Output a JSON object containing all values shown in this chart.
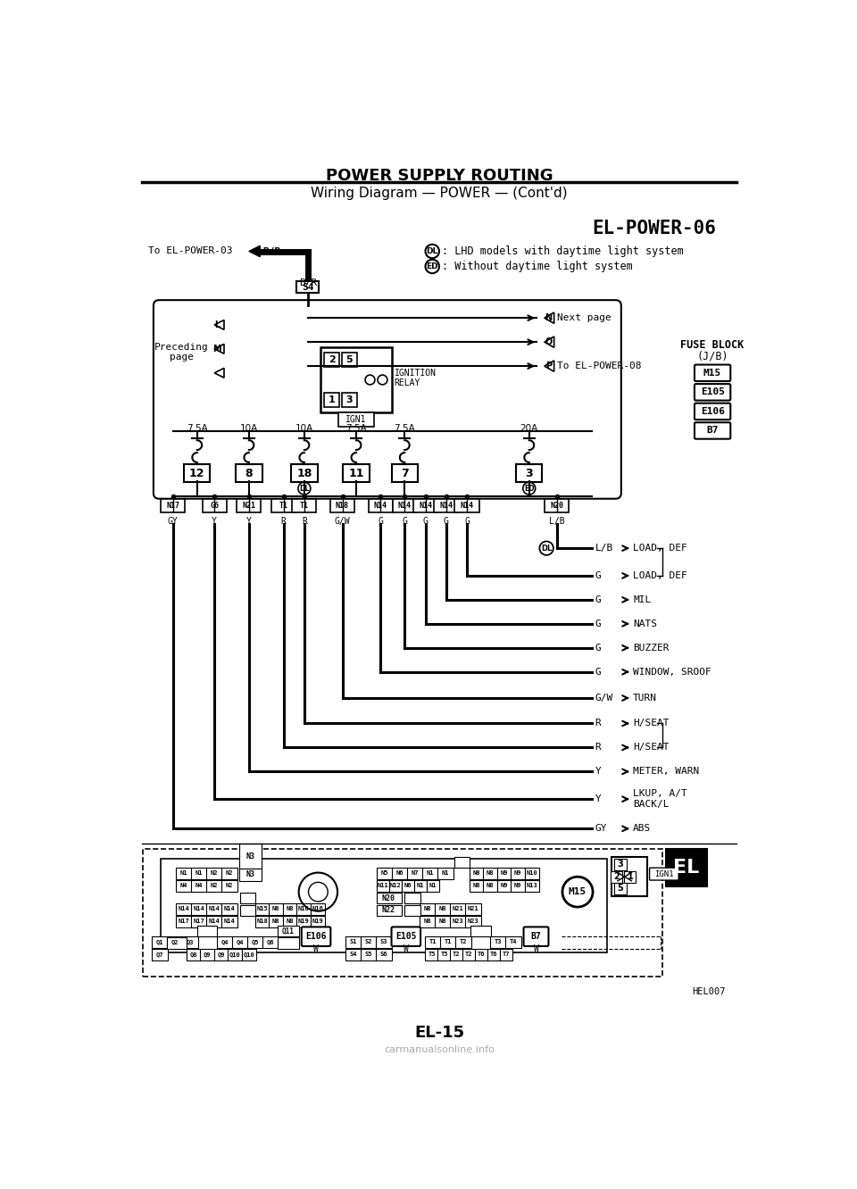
{
  "title": "POWER SUPPLY ROUTING",
  "subtitle": "Wiring Diagram — POWER — (Cont'd)",
  "page_id": "EL-POWER-06",
  "page_num": "EL-15",
  "ref_code": "HEL007",
  "bg_color": "#ffffff",
  "legend_dl": "LHD models with daytime light system",
  "legend_ed": "Without daytime light system",
  "fuse_block_label1": "FUSE BLOCK",
  "fuse_block_label2": "(J/B)",
  "fuse_block_items": [
    "M15",
    "E105",
    "E106",
    "B7"
  ],
  "fuses": [
    {
      "amps": "7.5A",
      "num": "12",
      "col": 0
    },
    {
      "amps": "10A",
      "num": "8",
      "col": 1
    },
    {
      "amps": "10A",
      "num": "18",
      "col": 2
    },
    {
      "amps": "7.5A",
      "num": "11",
      "col": 3
    },
    {
      "amps": "7.5A",
      "num": "7",
      "col": 4
    },
    {
      "amps": "20A",
      "num": "3",
      "col": 5
    }
  ],
  "fuse_dl_idx": 2,
  "fuse_ed_idx": 5,
  "connectors_top": [
    "N17",
    "G6",
    "N21",
    "T1",
    "T1",
    "N18",
    "N14",
    "N14",
    "N14",
    "N14",
    "N14",
    "N20"
  ],
  "wire_colors": [
    "GY",
    "Y",
    "Y",
    "R",
    "R",
    "G/W",
    "G",
    "G",
    "G",
    "G",
    "G",
    "L/B"
  ],
  "outputs": [
    {
      "wire": "L/B",
      "dest": "LOAD, DEF",
      "brace_top": true
    },
    {
      "wire": "G",
      "dest": "LOAD, DEF",
      "brace_bot": true
    },
    {
      "wire": "G",
      "dest": "MIL"
    },
    {
      "wire": "G",
      "dest": "NATS"
    },
    {
      "wire": "G",
      "dest": "BUZZER"
    },
    {
      "wire": "G",
      "dest": "WINDOW, SROOF"
    },
    {
      "wire": "G/W",
      "dest": "TURN"
    },
    {
      "wire": "R",
      "dest": "H/SEAT",
      "brace_top": true
    },
    {
      "wire": "R",
      "dest": "H/SEAT",
      "brace_bot": true
    },
    {
      "wire": "Y",
      "dest": "METER, WARN"
    },
    {
      "wire": "Y",
      "dest": "LKUP, A/T\nBACK/L"
    },
    {
      "wire": "GY",
      "dest": "ABS"
    }
  ]
}
